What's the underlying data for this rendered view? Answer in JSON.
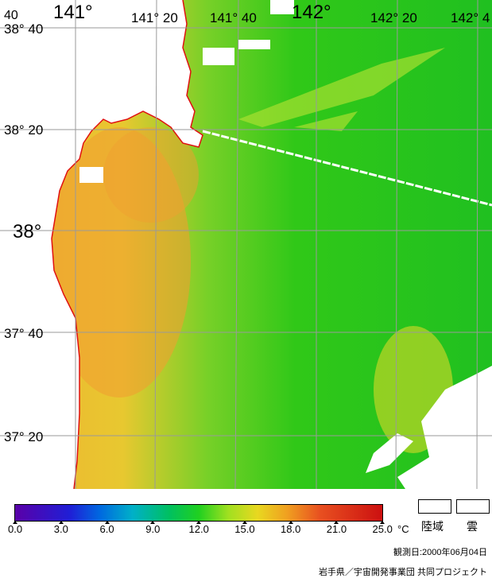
{
  "map": {
    "lat_labels": [
      "38° 40",
      "38° 20",
      "38°",
      "37° 40",
      "37° 20"
    ],
    "lon_labels": [
      "141°",
      "141° 20",
      "141° 40",
      "142°",
      "142° 20",
      "142° 4"
    ],
    "corner_label": "40"
  },
  "colorbar": {
    "ticks": [
      "0.0",
      "3.0",
      "6.0",
      "9.0",
      "12.0",
      "15.0",
      "18.0",
      "21.0",
      "25.0"
    ],
    "unit": "°C",
    "min": 0,
    "max": 25
  },
  "legend": {
    "land_label": "陸域",
    "cloud_label": "雲",
    "land_color": "#ffffff",
    "cloud_color": "#ffffff"
  },
  "footer": {
    "observation_date": "観測日:2000年06月04日",
    "credit": "岩手県／宇宙開発事業団  共同プロジェクト"
  },
  "colors": {
    "coastline": "#e01010",
    "grid": "#9a9a9a",
    "track": "#ffffff"
  }
}
